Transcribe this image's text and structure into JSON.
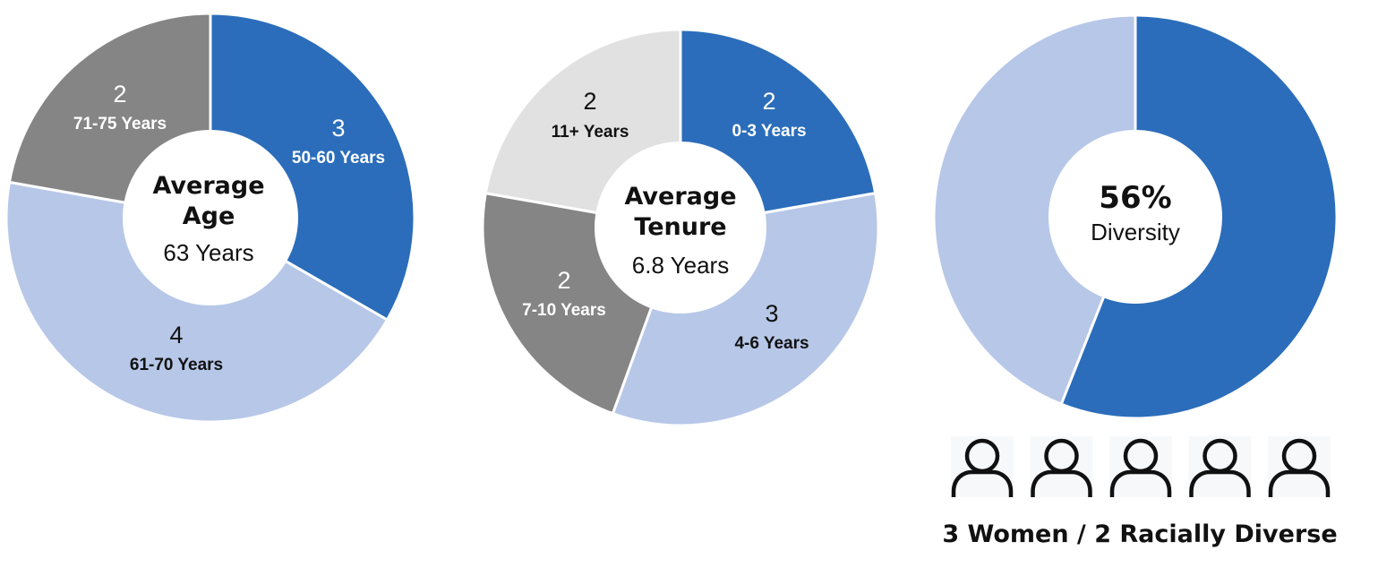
{
  "chart_data": [
    {
      "type": "pie",
      "center_title": [
        "Average",
        "Age"
      ],
      "center_value": "63 Years",
      "slices": [
        {
          "value": 3,
          "label": "50-60 Years",
          "color": "#2b6dba",
          "text_color": "#ffffff"
        },
        {
          "value": 4,
          "label": "61-70 Years",
          "color": "#b7c7e8",
          "text_color": "#111111"
        },
        {
          "value": 2,
          "label": "71-75 Years",
          "color": "#858585",
          "text_color": "#ffffff"
        }
      ]
    },
    {
      "type": "pie",
      "center_title": [
        "Average",
        "Tenure"
      ],
      "center_value": "6.8 Years",
      "slices": [
        {
          "value": 2,
          "label": "0-3 Years",
          "color": "#2b6dba",
          "text_color": "#ffffff"
        },
        {
          "value": 3,
          "label": "4-6 Years",
          "color": "#b7c7e8",
          "text_color": "#111111"
        },
        {
          "value": 2,
          "label": "7-10 Years",
          "color": "#858585",
          "text_color": "#ffffff"
        },
        {
          "value": 2,
          "label": "11+ Years",
          "color": "#e1e1e1",
          "text_color": "#111111"
        }
      ]
    },
    {
      "type": "pie",
      "center_title": [
        "56%"
      ],
      "center_value": "Diversity",
      "slices": [
        {
          "value": 56,
          "color": "#2b6dba"
        },
        {
          "value": 44,
          "color": "#b7c7e8"
        }
      ]
    }
  ],
  "people": {
    "icon": "person-outline-icon",
    "count": 5,
    "caption": "3 Women / 2 Racially Diverse"
  }
}
